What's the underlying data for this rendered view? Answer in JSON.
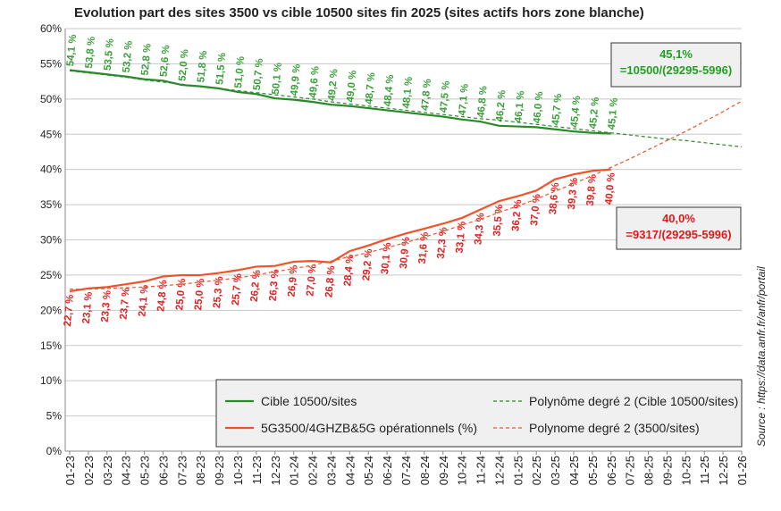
{
  "chart_data": {
    "type": "line",
    "title": "Evolution part des sites 3500 vs cible 10500 sites fin 2025 (sites actifs hors zone blanche)",
    "source": "Source : https://data.anfr.fr/anfr/portail",
    "categories": [
      "01-23",
      "02-23",
      "03-23",
      "04-23",
      "05-23",
      "06-23",
      "07-23",
      "08-23",
      "09-23",
      "10-23",
      "11-23",
      "12-23",
      "01-24",
      "02-24",
      "03-24",
      "04-24",
      "05-24",
      "06-24",
      "07-24",
      "08-24",
      "09-24",
      "10-24",
      "11-24",
      "12-24",
      "01-25",
      "02-25",
      "03-25",
      "04-25",
      "05-25",
      "06-25",
      "07-25",
      "08-25",
      "09-25",
      "10-25",
      "11-25",
      "12-25",
      "01-26"
    ],
    "series": [
      {
        "name": "Cible 10500/sites",
        "color": "#2a8a2a",
        "style": "solid",
        "label_color": "#3a9e3a",
        "label_side": "above",
        "values": [
          54.1,
          53.8,
          53.5,
          53.2,
          52.8,
          52.6,
          52.0,
          51.8,
          51.5,
          51.0,
          50.7,
          50.1,
          49.9,
          49.6,
          49.2,
          49.0,
          48.7,
          48.4,
          48.1,
          47.8,
          47.5,
          47.1,
          46.8,
          46.2,
          46.1,
          46.0,
          45.7,
          45.4,
          45.2,
          45.1,
          null,
          null,
          null,
          null,
          null,
          null,
          null
        ],
        "value_labels": [
          "54,1 %",
          "53,8 %",
          "53,5 %",
          "53,2 %",
          "52,8 %",
          "52,6 %",
          "52,0 %",
          "51,8 %",
          "51,5 %",
          "51,0 %",
          "50,7 %",
          "50,1 %",
          "49,9 %",
          "49,6 %",
          "49,2 %",
          "49,0 %",
          "48,7 %",
          "48,4 %",
          "48,1 %",
          "47,8 %",
          "47,5 %",
          "47,1 %",
          "46,8 %",
          "46,2 %",
          "46,1 %",
          "46,0 %",
          "45,7 %",
          "45,4 %",
          "45,2 %",
          "45,1 %",
          null,
          null,
          null,
          null,
          null,
          null,
          null
        ]
      },
      {
        "name": "Polynôme degré 2 (Cible 10500/sites)",
        "color": "#2a8a2a",
        "style": "dashed",
        "values": [
          54.0,
          53.7,
          53.4,
          53.1,
          52.7,
          52.4,
          52.1,
          51.8,
          51.5,
          51.2,
          50.9,
          50.6,
          50.3,
          50.0,
          49.6,
          49.3,
          49.0,
          48.7,
          48.4,
          48.1,
          47.8,
          47.5,
          47.2,
          47.0,
          46.7,
          46.4,
          46.1,
          45.8,
          45.5,
          45.2,
          44.9,
          44.6,
          44.3,
          44.1,
          43.8,
          43.5,
          43.2
        ]
      },
      {
        "name": "5G3500/4GHZB&5G opérationnels (%)",
        "color": "#f0522a",
        "style": "solid",
        "label_color": "#e02020",
        "label_side": "below",
        "values": [
          22.7,
          23.1,
          23.3,
          23.7,
          24.1,
          24.8,
          25.0,
          25.0,
          25.3,
          25.7,
          26.2,
          26.3,
          26.9,
          27.0,
          26.8,
          28.4,
          29.2,
          30.1,
          30.9,
          31.6,
          32.3,
          33.1,
          34.3,
          35.5,
          36.2,
          37.0,
          38.6,
          39.3,
          39.8,
          40.0,
          null,
          null,
          null,
          null,
          null,
          null,
          null
        ],
        "value_labels": [
          "22,7 %",
          "23,1 %",
          "23,3 %",
          "23,7 %",
          "24,1 %",
          "24,8 %",
          "25,0 %",
          "25,0 %",
          "25,3 %",
          "25,7 %",
          "26,2 %",
          "26,3 %",
          "26,9 %",
          "27,0 %",
          "26,8 %",
          "28,4 %",
          "29,2 %",
          "30,1 %",
          "30,9 %",
          "31,6 %",
          "32,3 %",
          "33,1 %",
          "34,3 %",
          "35,5 %",
          "36,2 %",
          "37,0 %",
          "38,6 %",
          "39,3 %",
          "39,8 %",
          "40,0 %",
          null,
          null,
          null,
          null,
          null,
          null,
          null
        ]
      },
      {
        "name": "Polynome degré 2 (3500/sites)",
        "color": "#f0522a",
        "style": "dashed",
        "values": [
          23.0,
          23.0,
          23.1,
          23.2,
          23.3,
          23.5,
          23.7,
          24.0,
          24.3,
          24.6,
          25.0,
          25.5,
          25.9,
          26.4,
          27.0,
          27.6,
          28.2,
          28.9,
          29.6,
          30.4,
          31.2,
          32.1,
          32.9,
          33.9,
          34.8,
          35.8,
          36.9,
          38.0,
          39.1,
          40.3,
          41.5,
          42.8,
          44.1,
          45.4,
          46.8,
          48.2,
          49.7
        ]
      }
    ],
    "annotations": [
      {
        "lines": [
          "45,1%",
          "=10500/(29295-5996)"
        ],
        "color": "#22a022"
      },
      {
        "lines": [
          "40,0%",
          "=9317/(29295-5996)"
        ],
        "color": "#e01818"
      }
    ],
    "ylim": [
      0,
      60
    ],
    "yticks": [
      {
        "value": 0,
        "label": "0%"
      },
      {
        "value": 5,
        "label": "5%"
      },
      {
        "value": 10,
        "label": "10%"
      },
      {
        "value": 15,
        "label": "15%"
      },
      {
        "value": 20,
        "label": "20%"
      },
      {
        "value": 25,
        "label": "25%"
      },
      {
        "value": 30,
        "label": "30%"
      },
      {
        "value": 35,
        "label": "35%"
      },
      {
        "value": 40,
        "label": "40%"
      },
      {
        "value": 45,
        "label": "45%"
      },
      {
        "value": 50,
        "label": "50%"
      },
      {
        "value": 55,
        "label": "55%"
      },
      {
        "value": 60,
        "label": "60%"
      }
    ],
    "grid": true,
    "legend": "bottom-right"
  }
}
